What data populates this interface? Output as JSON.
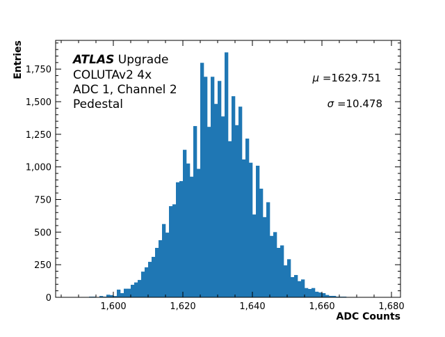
{
  "chart_data": {
    "type": "bar",
    "title": "",
    "xlabel": "ADC Counts",
    "ylabel": "Entries",
    "xlim": [
      1583.4,
      1682.6
    ],
    "ylim": [
      0,
      1970
    ],
    "grid": false,
    "color": "#1f77b4",
    "bin_width": 1,
    "x_ticks": [
      1600,
      1620,
      1640,
      1660,
      1680
    ],
    "x_tick_labels": [
      "1,600",
      "1,620",
      "1,640",
      "1,660",
      "1,680"
    ],
    "y_ticks": [
      0,
      250,
      500,
      750,
      1000,
      1250,
      1500,
      1750
    ],
    "y_tick_labels": [
      "0",
      "250",
      "500",
      "750",
      "1,000",
      "1,250",
      "1,500",
      "1,750"
    ],
    "x": [
      1593,
      1594,
      1595,
      1596,
      1597,
      1598,
      1599,
      1600,
      1601,
      1602,
      1603,
      1604,
      1605,
      1606,
      1607,
      1608,
      1609,
      1610,
      1611,
      1612,
      1613,
      1614,
      1615,
      1616,
      1617,
      1618,
      1619,
      1620,
      1621,
      1622,
      1623,
      1624,
      1625,
      1626,
      1627,
      1628,
      1629,
      1630,
      1631,
      1632,
      1633,
      1634,
      1635,
      1636,
      1637,
      1638,
      1639,
      1640,
      1641,
      1642,
      1643,
      1644,
      1645,
      1646,
      1647,
      1648,
      1649,
      1650,
      1651,
      1652,
      1653,
      1654,
      1655,
      1656,
      1657,
      1658,
      1659,
      1660,
      1661,
      1662,
      1663,
      1664,
      1665,
      1666
    ],
    "values": [
      5,
      5,
      2,
      10,
      5,
      20,
      17,
      10,
      59,
      32,
      66,
      66,
      96,
      114,
      133,
      197,
      230,
      272,
      310,
      379,
      438,
      562,
      496,
      699,
      713,
      882,
      891,
      1131,
      1026,
      925,
      1313,
      985,
      1798,
      1691,
      1307,
      1691,
      1483,
      1659,
      1387,
      1878,
      1197,
      1542,
      1320,
      1462,
      1057,
      1217,
      1032,
      635,
      1009,
      833,
      615,
      729,
      471,
      500,
      379,
      398,
      245,
      292,
      155,
      171,
      124,
      137,
      71,
      64,
      71,
      43,
      37,
      32,
      18,
      11,
      11,
      5,
      5,
      5
    ],
    "annotations": {
      "atlas": "ATLAS",
      "atlas_suffix": "Upgrade",
      "line2": "COLUTAv2 4x",
      "line3": "ADC 1, Channel 2",
      "line4": "Pedestal",
      "mu_symbol": "μ",
      "mu_value": "=1629.751",
      "sigma_symbol": "σ",
      "sigma_value": "=10.478"
    }
  }
}
